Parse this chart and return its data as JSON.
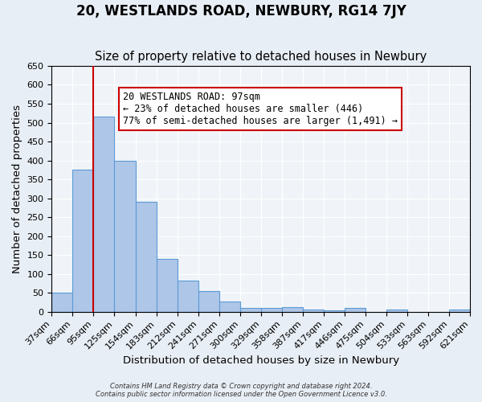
{
  "title": "20, WESTLANDS ROAD, NEWBURY, RG14 7JY",
  "subtitle": "Size of property relative to detached houses in Newbury",
  "xlabel": "Distribution of detached houses by size in Newbury",
  "ylabel": "Number of detached properties",
  "bin_labels": [
    "37sqm",
    "66sqm",
    "95sqm",
    "125sqm",
    "154sqm",
    "183sqm",
    "212sqm",
    "241sqm",
    "271sqm",
    "300sqm",
    "329sqm",
    "358sqm",
    "387sqm",
    "417sqm",
    "446sqm",
    "475sqm",
    "504sqm",
    "533sqm",
    "563sqm",
    "592sqm",
    "621sqm"
  ],
  "bar_values": [
    50,
    375,
    515,
    400,
    290,
    140,
    82,
    55,
    28,
    10,
    10,
    12,
    5,
    3,
    10,
    0,
    5,
    0,
    0,
    5
  ],
  "bar_color": "#aec6e8",
  "bar_edge_color": "#5b9bd5",
  "vline_position": 2,
  "vline_color": "#cc0000",
  "ylim": [
    0,
    650
  ],
  "yticks": [
    0,
    50,
    100,
    150,
    200,
    250,
    300,
    350,
    400,
    450,
    500,
    550,
    600,
    650
  ],
  "annotation_title": "20 WESTLANDS ROAD: 97sqm",
  "annotation_line1": "← 23% of detached houses are smaller (446)",
  "annotation_line2": "77% of semi-detached houses are larger (1,491) →",
  "annotation_box_color": "#ffffff",
  "annotation_box_edge_color": "#cc0000",
  "footer1": "Contains HM Land Registry data © Crown copyright and database right 2024.",
  "footer2": "Contains public sector information licensed under the Open Government Licence v3.0.",
  "background_color": "#e8eef5",
  "plot_background_color": "#f0f4f8",
  "grid_color": "#ffffff",
  "title_fontsize": 12,
  "subtitle_fontsize": 10.5,
  "axis_label_fontsize": 9.5,
  "tick_fontsize": 8
}
